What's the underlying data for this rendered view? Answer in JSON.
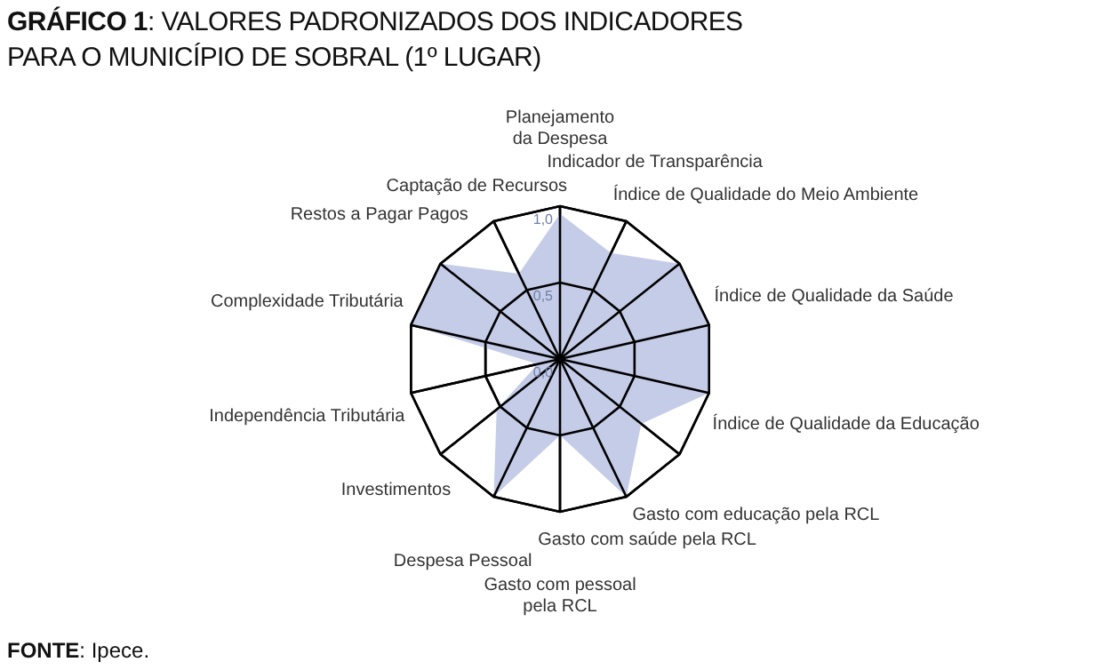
{
  "chart_data": {
    "type": "radar",
    "title": "GRÁFICO 1: VALORES PADRONIZADOS DOS INDICADORES\nPARA O MUNICÍPIO DE SOBRAL (1º LUGAR)",
    "categories": [
      "Planejamento\nda Despesa",
      "Indicador de Transparência",
      "Índice de Qualidade do Meio Ambiente",
      "Índice de Qualidade da Saúde",
      "Índice de Qualidade da Educação",
      "Gasto com educação pela RCL",
      "Gasto com saúde pela RCL",
      "Gasto com pessoal\npela RCL",
      "Despesa Pessoal",
      "Investimentos",
      "Independência Tributária",
      "Complexidade Tributária",
      "Restos a Pagar Pagos",
      "Captação de Recursos"
    ],
    "series": [
      {
        "color": "#c5cce8",
        "values": [
          0.95,
          0.77,
          1.0,
          1.0,
          1.0,
          0.68,
          1.0,
          0.5,
          1.0,
          0.53,
          0.15,
          1.0,
          1.0,
          0.62
        ]
      }
    ],
    "ylim": [
      0,
      1
    ],
    "yticks": [
      {
        "value": 0,
        "label": "0,0"
      },
      {
        "value": 0.5,
        "label": "0,5"
      },
      {
        "value": 1,
        "label": "1,0"
      }
    ],
    "grid": true,
    "legend": false,
    "marker": "none",
    "annotations": [
      "FONTE: Ipece."
    ]
  }
}
